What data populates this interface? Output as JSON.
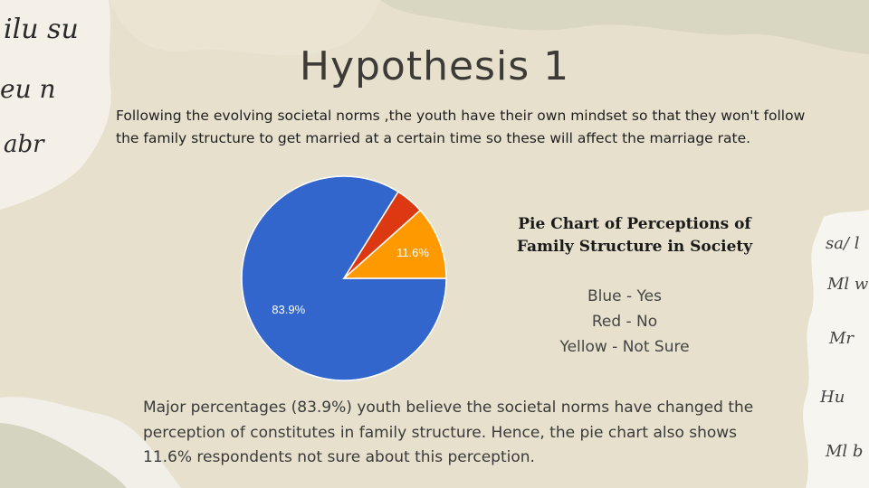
{
  "slide": {
    "title": "Hypothesis 1",
    "intro": "Following the evolving societal norms ,the youth have their own mindset so that they won't follow the family structure to get married at a certain time so these will affect the marriage rate.",
    "summary": "Major percentages (83.9%) youth believe the societal norms have changed the perception of constitutes in family structure. Hence, the pie chart also shows 11.6% respondents not sure about this perception."
  },
  "chart_data": {
    "type": "pie",
    "title": "Pie Chart of Perceptions of Family Structure in Society",
    "categories": [
      "Blue - Yes",
      "Red - No",
      "Yellow - Not Sure"
    ],
    "values": [
      83.9,
      4.5,
      11.6
    ],
    "colors": [
      "#3366cc",
      "#dc3912",
      "#ff9900"
    ],
    "data_labels": [
      "83.9%",
      "",
      "11.6%"
    ]
  }
}
